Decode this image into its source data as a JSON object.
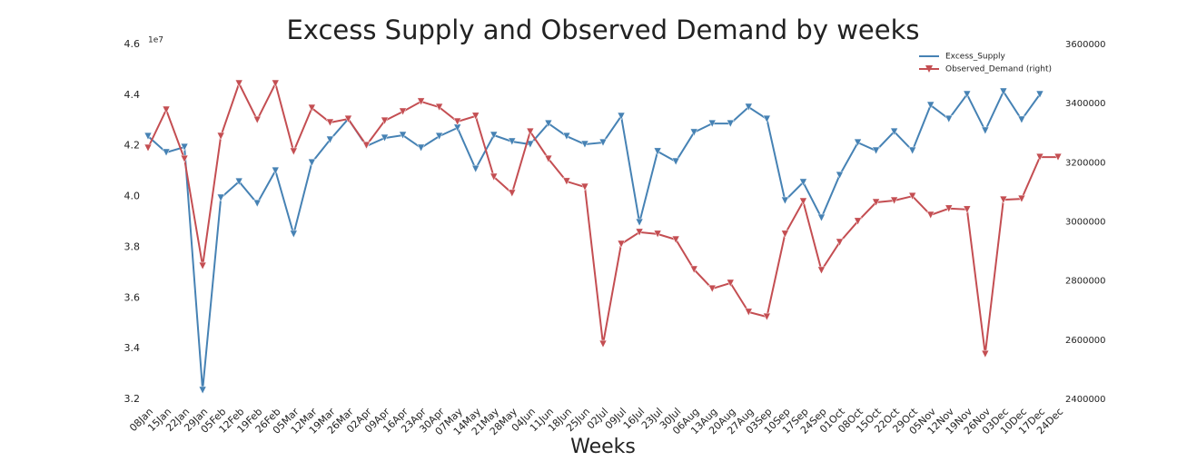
{
  "chart_data": {
    "type": "line",
    "title": "Excess Supply  and Observed Demand by weeks",
    "xlabel": "Weeks",
    "y_offset_label": "1e7",
    "categories": [
      "08Jan",
      "15Jan",
      "22Jan",
      "29Jan",
      "05Feb",
      "12Feb",
      "19Feb",
      "26Feb",
      "05Mar",
      "12Mar",
      "19Mar",
      "26Mar",
      "02Apr",
      "09Apr",
      "16Apr",
      "23Apr",
      "30Apr",
      "07May",
      "14May",
      "21May",
      "28May",
      "04Jun",
      "11Jun",
      "18Jun",
      "25Jun",
      "02Jul",
      "09Jul",
      "16Jul",
      "23Jul",
      "30Jul",
      "06Aug",
      "13Aug",
      "20Aug",
      "27Aug",
      "03Sep",
      "10Sep",
      "17Sep",
      "24Sep",
      "01Oct",
      "08Oct",
      "15Oct",
      "22Oct",
      "29Oct",
      "05Nov",
      "12Nov",
      "19Nov",
      "26Nov",
      "03Dec",
      "10Dec",
      "17Dec",
      "24Dec"
    ],
    "series": [
      {
        "name": "Excess_Supply",
        "color": "#4682b4",
        "values": [
          4.238,
          4.174,
          4.195,
          3.236,
          3.995,
          4.059,
          3.973,
          4.102,
          3.852,
          4.134,
          4.224,
          4.306,
          4.199,
          4.231,
          4.242,
          4.192,
          4.238,
          4.271,
          4.109,
          4.242,
          4.217,
          4.206,
          4.288,
          4.238,
          4.206,
          4.213,
          4.317,
          3.898,
          4.178,
          4.138,
          4.253,
          4.288,
          4.288,
          4.353,
          4.306,
          3.984,
          4.056,
          3.916,
          4.084,
          4.213,
          4.181,
          4.256,
          4.181,
          4.36,
          4.306,
          4.403,
          4.26,
          4.414,
          4.303,
          4.403,
          null
        ]
      },
      {
        "name": "Observed_Demand (right)",
        "color": "#c44e52",
        "axis": "y2",
        "values": [
          3250000,
          3379000,
          3213000,
          2851000,
          3290000,
          3468000,
          3345000,
          3468000,
          3238000,
          3385000,
          3336000,
          3348000,
          3259000,
          3342000,
          3373000,
          3407000,
          3388000,
          3339000,
          3358000,
          3152000,
          3097000,
          3305000,
          3213000,
          3137000,
          3118000,
          2587000,
          2925000,
          2965000,
          2959000,
          2940000,
          2839000,
          2774000,
          2793000,
          2695000,
          2679000,
          2959000,
          3069000,
          2836000,
          2931000,
          3002000,
          3066000,
          3072000,
          3087000,
          3023000,
          3045000,
          3042000,
          2553000,
          3075000,
          3078000,
          3219000,
          3219000
        ]
      }
    ],
    "ylim": [
      3.2,
      4.6
    ],
    "yticks": [
      3.2,
      3.4,
      3.6,
      3.8,
      {
        "value": 4,
        "label": "4.0"
      },
      4.2,
      4.4,
      4.6
    ],
    "y2lim": [
      2400000,
      3600000
    ],
    "y2ticks": [
      2400000,
      2600000,
      2800000,
      3000000,
      3200000,
      3400000,
      3600000
    ],
    "legend": "upper right"
  }
}
